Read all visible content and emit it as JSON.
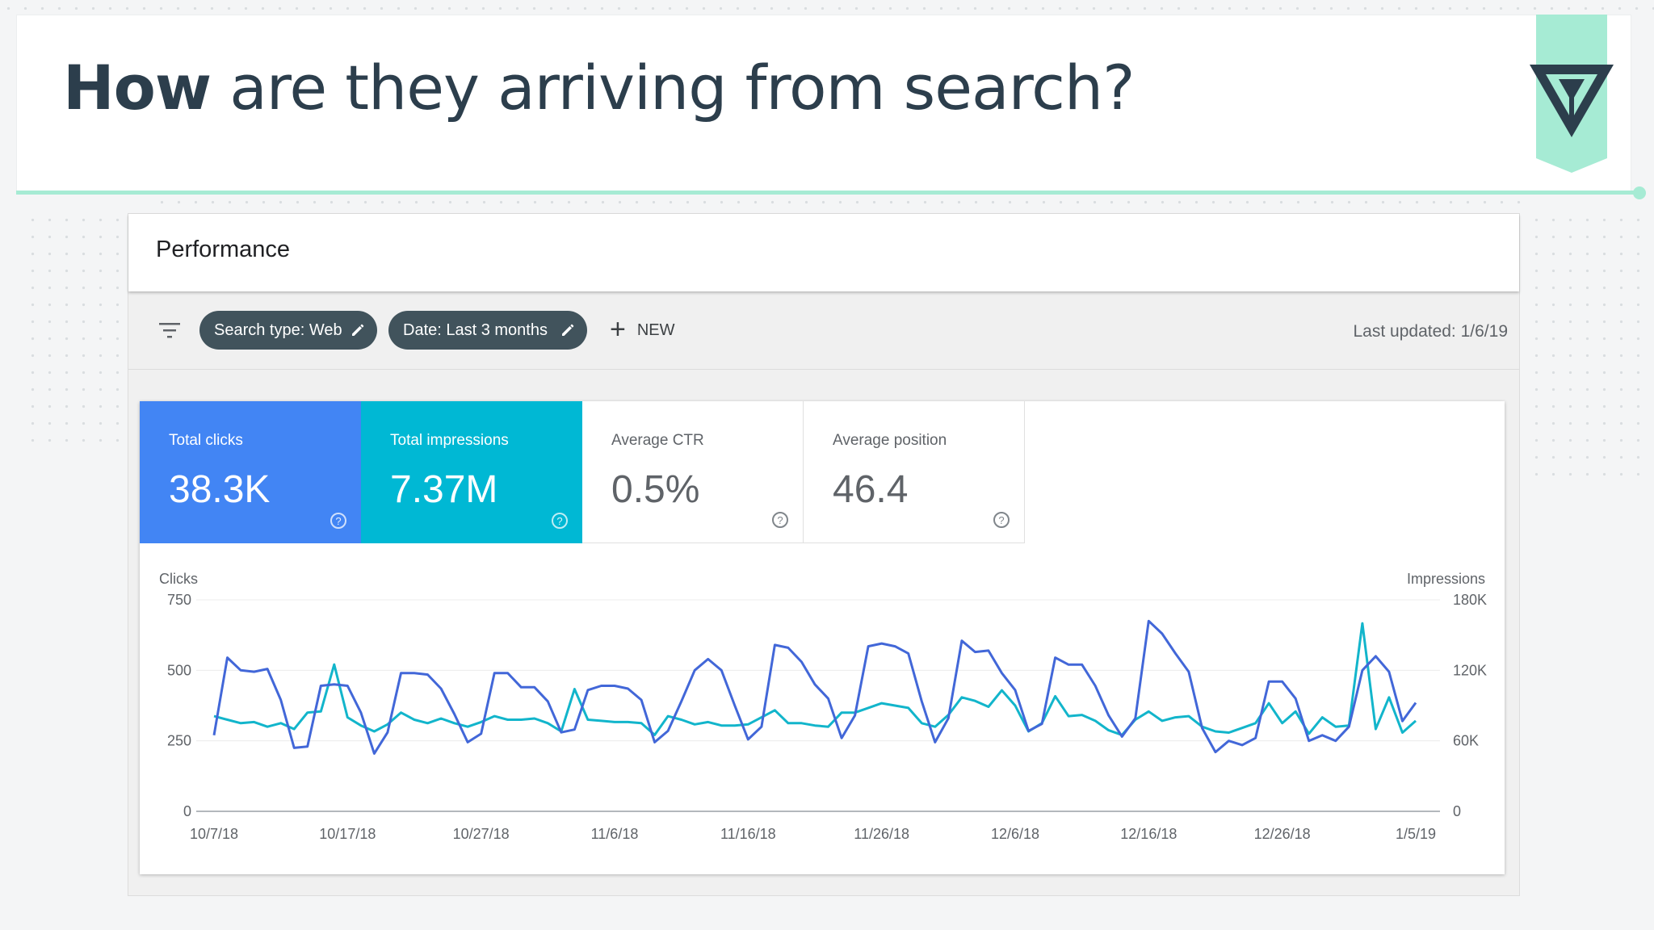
{
  "slide": {
    "title_bold": "How",
    "title_rest": " are they arriving from search?",
    "accent_color": "#a6ebd4",
    "title_color": "#2c3e4c"
  },
  "performance": {
    "title": "Performance",
    "filter_icon": "filter-icon",
    "chips": [
      {
        "label": "Search type: Web",
        "icon": "pencil-icon"
      },
      {
        "label": "Date: Last 3 months",
        "icon": "pencil-icon"
      }
    ],
    "new_label": "NEW",
    "last_updated": "Last updated: 1/6/19"
  },
  "metrics": [
    {
      "label": "Total clicks",
      "value": "38.3K",
      "color": "#4285f4"
    },
    {
      "label": "Total impressions",
      "value": "7.37M",
      "color": "#00b8d4"
    },
    {
      "label": "Average CTR",
      "value": "0.5%"
    },
    {
      "label": "Average position",
      "value": "46.4"
    }
  ],
  "help_glyph": "?",
  "chart_data": {
    "type": "line",
    "left_axis_label": "Clicks",
    "right_axis_label": "Impressions",
    "left_ticks": [
      "750",
      "500",
      "250",
      "0"
    ],
    "left_ylim": [
      0,
      750
    ],
    "right_ticks": [
      "180K",
      "120K",
      "60K",
      "0"
    ],
    "right_ylim": [
      0,
      180000
    ],
    "x_tick_labels": [
      "10/7/18",
      "10/17/18",
      "10/27/18",
      "11/6/18",
      "11/16/18",
      "11/26/18",
      "12/6/18",
      "12/16/18",
      "12/26/18",
      "1/5/19"
    ],
    "x_start": "10/7/18",
    "x_end": "1/6/19",
    "grid": true,
    "series": [
      {
        "name": "Clicks",
        "axis": "left",
        "color": "#4267d8",
        "values": [
          270,
          545,
          500,
          495,
          505,
          395,
          225,
          230,
          445,
          450,
          445,
          350,
          205,
          280,
          490,
          490,
          485,
          435,
          345,
          245,
          275,
          490,
          490,
          440,
          440,
          390,
          280,
          290,
          430,
          445,
          445,
          435,
          395,
          245,
          285,
          390,
          500,
          540,
          500,
          375,
          255,
          300,
          590,
          580,
          530,
          450,
          400,
          260,
          340,
          585,
          595,
          585,
          560,
          390,
          245,
          330,
          605,
          565,
          570,
          490,
          430,
          285,
          310,
          545,
          520,
          520,
          445,
          340,
          265,
          330,
          675,
          630,
          560,
          495,
          295,
          210,
          250,
          235,
          260,
          460,
          460,
          400,
          250,
          270,
          250,
          300,
          500,
          550,
          495,
          320,
          385
        ]
      },
      {
        "name": "Impressions",
        "axis": "right",
        "color": "#12b5cb",
        "values": [
          81000,
          78000,
          75000,
          76000,
          72000,
          75000,
          70000,
          84000,
          85000,
          125000,
          80000,
          73000,
          68000,
          74000,
          84000,
          78000,
          75000,
          79000,
          75000,
          72000,
          76000,
          81000,
          78000,
          78000,
          79000,
          75000,
          68000,
          104000,
          78000,
          77000,
          76000,
          76000,
          75000,
          65000,
          81000,
          78000,
          74000,
          76000,
          73000,
          73000,
          74000,
          80000,
          86000,
          75000,
          75000,
          73000,
          72000,
          84000,
          84000,
          88000,
          92000,
          90000,
          88000,
          75000,
          72000,
          82000,
          97000,
          94000,
          89000,
          103000,
          90000,
          68000,
          75000,
          98000,
          81000,
          82000,
          77000,
          69000,
          65000,
          78000,
          85000,
          77000,
          80000,
          81000,
          72000,
          68000,
          67000,
          71000,
          75000,
          92000,
          75000,
          85000,
          66000,
          80000,
          72000,
          73000,
          160000,
          70000,
          97000,
          67000,
          77000
        ]
      }
    ]
  }
}
